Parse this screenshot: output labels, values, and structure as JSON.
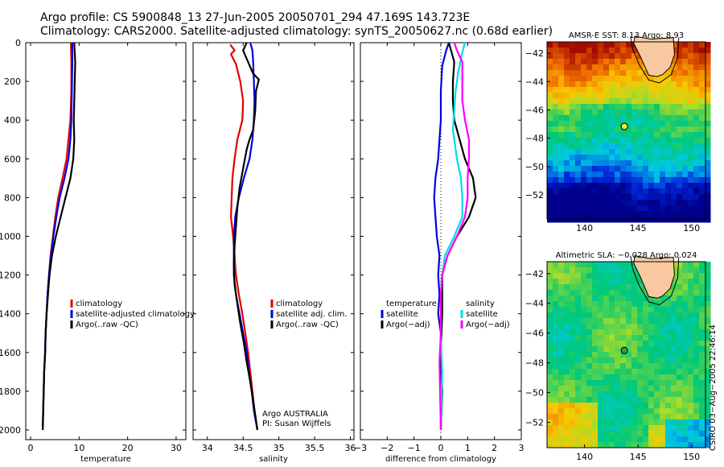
{
  "header": {
    "line1": "Argo profile: CS 5900848_13 27-Jun-2005 20050701_294 47.169S 143.723E",
    "line2": "Climatology: CARS2000. Satellite-adjusted climatology: synTS_20050627.nc (0.68d earlier)"
  },
  "chart_data": [
    {
      "type": "line",
      "xlabel": "temperature",
      "ylabel": "",
      "xlim": [
        -1,
        32
      ],
      "ylim": [
        2050,
        0
      ],
      "x_ticks": [
        "0",
        "10",
        "20",
        "30"
      ],
      "y_ticks": [
        "0",
        "200",
        "400",
        "600",
        "800",
        "1000",
        "1200",
        "1400",
        "1600",
        "1800",
        "2000"
      ],
      "legend": [
        "climatology",
        "satellite-adjusted climatology",
        "Argo(..raw -QC)"
      ],
      "series": [
        {
          "name": "climatology",
          "color": "#e00000",
          "points": [
            [
              8.3,
              0
            ],
            [
              8.4,
              100
            ],
            [
              8.4,
              240
            ],
            [
              8.2,
              400
            ],
            [
              7.8,
              500
            ],
            [
              7.4,
              600
            ],
            [
              6.6,
              700
            ],
            [
              5.7,
              800
            ],
            [
              5.1,
              900
            ],
            [
              4.6,
              1000
            ],
            [
              4.1,
              1100
            ],
            [
              3.8,
              1200
            ],
            [
              3.5,
              1300
            ],
            [
              3.3,
              1400
            ],
            [
              3.1,
              1500
            ],
            [
              3.0,
              1600
            ],
            [
              2.8,
              1700
            ],
            [
              2.7,
              1800
            ],
            [
              2.6,
              1900
            ],
            [
              2.5,
              2000
            ]
          ]
        },
        {
          "name": "satellite-adjusted climatology",
          "color": "#0000e0",
          "points": [
            [
              8.6,
              0
            ],
            [
              8.6,
              100
            ],
            [
              8.4,
              400
            ],
            [
              8.2,
              500
            ],
            [
              7.8,
              600
            ],
            [
              7.0,
              700
            ],
            [
              6.0,
              800
            ],
            [
              5.3,
              900
            ],
            [
              4.7,
              1000
            ],
            [
              4.2,
              1100
            ],
            [
              3.8,
              1200
            ],
            [
              3.5,
              1300
            ],
            [
              3.3,
              1400
            ],
            [
              3.1,
              1500
            ],
            [
              3.0,
              1600
            ],
            [
              2.8,
              1700
            ],
            [
              2.7,
              1800
            ],
            [
              2.6,
              1900
            ],
            [
              2.5,
              2000
            ]
          ]
        },
        {
          "name": "Argo(..raw -QC)",
          "color": "#000000",
          "points": [
            [
              9.0,
              0
            ],
            [
              9.2,
              100
            ],
            [
              9.1,
              200
            ],
            [
              9.0,
              300
            ],
            [
              8.9,
              400
            ],
            [
              9.0,
              500
            ],
            [
              8.8,
              600
            ],
            [
              8.2,
              700
            ],
            [
              7.2,
              800
            ],
            [
              6.2,
              900
            ],
            [
              5.2,
              1000
            ],
            [
              4.4,
              1100
            ],
            [
              3.9,
              1200
            ],
            [
              3.6,
              1300
            ],
            [
              3.3,
              1400
            ],
            [
              3.1,
              1500
            ],
            [
              3.0,
              1600
            ],
            [
              2.8,
              1700
            ],
            [
              2.7,
              1800
            ],
            [
              2.6,
              1900
            ],
            [
              2.5,
              2000
            ]
          ]
        }
      ]
    },
    {
      "type": "line",
      "xlabel": "salinity",
      "ylabel": "",
      "xlim": [
        33.8,
        36.05
      ],
      "ylim": [
        2050,
        0
      ],
      "x_ticks": [
        "34",
        "34.5",
        "35",
        "35.5",
        "36"
      ],
      "legend": [
        "climatology",
        "satellite adj. clim.",
        "Argo(..raw -QC)"
      ],
      "annotation": [
        "Argo AUSTRALIA",
        "PI: Susan Wijffels"
      ],
      "series": [
        {
          "name": "climatology",
          "color": "#e00000",
          "points": [
            [
              34.32,
              10
            ],
            [
              34.38,
              40
            ],
            [
              34.33,
              60
            ],
            [
              34.4,
              110
            ],
            [
              34.46,
              200
            ],
            [
              34.5,
              300
            ],
            [
              34.49,
              400
            ],
            [
              34.42,
              500
            ],
            [
              34.38,
              600
            ],
            [
              34.35,
              700
            ],
            [
              34.34,
              800
            ],
            [
              34.33,
              900
            ],
            [
              34.36,
              1000
            ],
            [
              34.38,
              1100
            ],
            [
              34.4,
              1200
            ],
            [
              34.44,
              1300
            ],
            [
              34.49,
              1400
            ],
            [
              34.53,
              1500
            ],
            [
              34.57,
              1600
            ],
            [
              34.6,
              1700
            ],
            [
              34.63,
              1800
            ],
            [
              34.66,
              1900
            ],
            [
              34.7,
              2000
            ]
          ]
        },
        {
          "name": "satellite adj. clim.",
          "color": "#0000e0",
          "points": [
            [
              34.6,
              0
            ],
            [
              34.63,
              40
            ],
            [
              34.64,
              100
            ],
            [
              34.65,
              200
            ],
            [
              34.66,
              300
            ],
            [
              34.65,
              400
            ],
            [
              34.63,
              500
            ],
            [
              34.59,
              600
            ],
            [
              34.51,
              700
            ],
            [
              34.44,
              800
            ],
            [
              34.39,
              900
            ],
            [
              34.37,
              1000
            ],
            [
              34.37,
              1100
            ],
            [
              34.37,
              1200
            ],
            [
              34.4,
              1300
            ],
            [
              34.45,
              1400
            ],
            [
              34.5,
              1500
            ],
            [
              34.55,
              1600
            ],
            [
              34.58,
              1700
            ],
            [
              34.62,
              1800
            ],
            [
              34.65,
              1900
            ],
            [
              34.7,
              2000
            ]
          ]
        },
        {
          "name": "Argo(..raw -QC)",
          "color": "#000000",
          "points": [
            [
              34.55,
              0
            ],
            [
              34.5,
              40
            ],
            [
              34.57,
              100
            ],
            [
              34.64,
              160
            ],
            [
              34.72,
              190
            ],
            [
              34.68,
              250
            ],
            [
              34.67,
              350
            ],
            [
              34.64,
              450
            ],
            [
              34.59,
              500
            ],
            [
              34.55,
              550
            ],
            [
              34.5,
              650
            ],
            [
              34.45,
              750
            ],
            [
              34.42,
              850
            ],
            [
              34.4,
              950
            ],
            [
              34.38,
              1050
            ],
            [
              34.37,
              1150
            ],
            [
              34.38,
              1250
            ],
            [
              34.42,
              1350
            ],
            [
              34.46,
              1450
            ],
            [
              34.51,
              1550
            ],
            [
              34.55,
              1650
            ],
            [
              34.6,
              1750
            ],
            [
              34.64,
              1850
            ],
            [
              34.7,
              2000
            ]
          ]
        }
      ]
    },
    {
      "type": "line",
      "xlabel": "difference from climatology",
      "ylabel": "",
      "xlim": [
        -3,
        3
      ],
      "ylim": [
        2050,
        0
      ],
      "x_ticks": [
        "−3",
        "−2",
        "−1",
        "0",
        "1",
        "2",
        "3"
      ],
      "legend_left": [
        "temperature",
        "satellite",
        "Argo(−adj)"
      ],
      "legend_right": [
        "salinity",
        "satellite",
        "Argo(−adj)"
      ],
      "series": [
        {
          "name": "temperature satellite",
          "color": "#0000e0",
          "points": [
            [
              0.3,
              0
            ],
            [
              0.2,
              40
            ],
            [
              0.05,
              120
            ],
            [
              0.0,
              250
            ],
            [
              0.0,
              400
            ],
            [
              -0.05,
              500
            ],
            [
              -0.1,
              600
            ],
            [
              -0.2,
              700
            ],
            [
              -0.25,
              800
            ],
            [
              -0.2,
              900
            ],
            [
              -0.15,
              1000
            ],
            [
              -0.05,
              1100
            ],
            [
              -0.1,
              1200
            ],
            [
              -0.05,
              1300
            ],
            [
              -0.1,
              1400
            ],
            [
              0,
              1500
            ],
            [
              0,
              1600
            ],
            [
              0,
              1800
            ],
            [
              0,
              2000
            ]
          ]
        },
        {
          "name": "temperature Argo(−adj)",
          "color": "#000000",
          "points": [
            [
              0.3,
              0
            ],
            [
              0.5,
              100
            ],
            [
              0.45,
              200
            ],
            [
              0.45,
              300
            ],
            [
              0.5,
              400
            ],
            [
              0.7,
              500
            ],
            [
              0.9,
              600
            ],
            [
              1.2,
              700
            ],
            [
              1.3,
              800
            ],
            [
              1.05,
              900
            ],
            [
              0.6,
              1000
            ],
            [
              0.25,
              1100
            ],
            [
              0.05,
              1200
            ],
            [
              0.05,
              1400
            ],
            [
              0.0,
              1600
            ],
            [
              0.05,
              1800
            ],
            [
              0.0,
              2000
            ]
          ]
        },
        {
          "name": "salinity satellite",
          "color": "#00dddd",
          "points": [
            [
              0.9,
              0
            ],
            [
              0.8,
              50
            ],
            [
              0.65,
              150
            ],
            [
              0.55,
              250
            ],
            [
              0.5,
              350
            ],
            [
              0.45,
              450
            ],
            [
              0.5,
              500
            ],
            [
              0.6,
              600
            ],
            [
              0.75,
              700
            ],
            [
              0.8,
              800
            ],
            [
              0.8,
              900
            ],
            [
              0.5,
              1000
            ],
            [
              0.15,
              1100
            ],
            [
              0.05,
              1200
            ],
            [
              0,
              1300
            ],
            [
              0,
              1500
            ],
            [
              0.05,
              1700
            ],
            [
              0,
              2000
            ]
          ]
        },
        {
          "name": "salinity Argo(−adj)",
          "color": "#ff00ff",
          "points": [
            [
              0.5,
              0
            ],
            [
              0.6,
              40
            ],
            [
              0.8,
              100
            ],
            [
              0.8,
              200
            ],
            [
              0.8,
              300
            ],
            [
              0.9,
              400
            ],
            [
              1.05,
              500
            ],
            [
              1.05,
              600
            ],
            [
              1.0,
              700
            ],
            [
              1.0,
              800
            ],
            [
              0.9,
              900
            ],
            [
              0.6,
              1000
            ],
            [
              0.25,
              1100
            ],
            [
              0.05,
              1200
            ],
            [
              0,
              1300
            ],
            [
              0,
              1500
            ],
            [
              -0.05,
              1650
            ],
            [
              0,
              2000
            ]
          ]
        }
      ]
    },
    {
      "type": "heatmap",
      "title": "AMSR-E SST: 8.13 Argo: 8.93",
      "x_ticks": [
        "140",
        "145",
        "150"
      ],
      "y_ticks": [
        "−42",
        "−44",
        "−46",
        "−48",
        "−50",
        "−52"
      ],
      "xlim": [
        136.5,
        151.3
      ],
      "ylim": [
        -53.7,
        -41.2
      ],
      "marker": {
        "lon": 143.723,
        "lat": -47.169,
        "color": "#f0f020"
      }
    },
    {
      "type": "heatmap",
      "title": "Altimetric SLA: −0.028 Argo: 0.024",
      "x_ticks": [
        "140",
        "145",
        "150"
      ],
      "y_ticks": [
        "−42",
        "−44",
        "−46",
        "−48",
        "−50",
        "−52"
      ],
      "xlim": [
        136.5,
        151.3
      ],
      "ylim": [
        -53.7,
        -41.2
      ],
      "marker": {
        "lon": 143.723,
        "lat": -47.169,
        "color": "#3a9a50"
      }
    }
  ],
  "credit": "CSIRO 03−Aug−2005 22:46:14",
  "colors": {
    "land": "#f8c8a0",
    "climatology": "#e00000",
    "satellite": "#0000e0",
    "argo": "#000000",
    "salinity_sat": "#00dddd",
    "salinity_argo": "#ff00ff"
  }
}
